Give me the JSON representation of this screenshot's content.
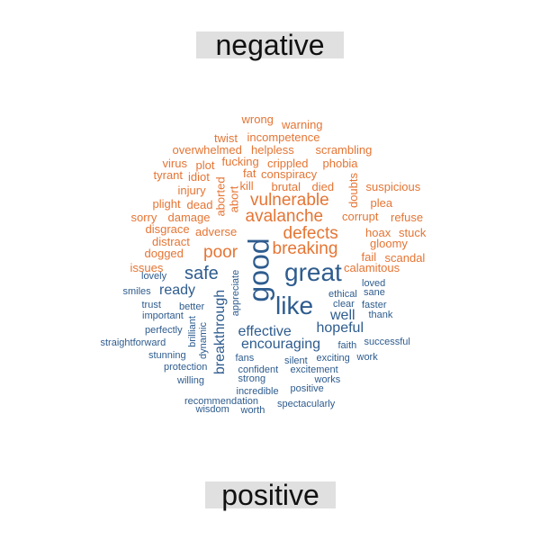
{
  "colors": {
    "negative": "#E57534",
    "positive": "#2E5C8E"
  },
  "labels": {
    "negative": "negative",
    "positive": "positive"
  },
  "words": [
    {
      "text": "wrong",
      "sentiment": "negative"
    },
    {
      "text": "warning",
      "sentiment": "negative"
    },
    {
      "text": "twist",
      "sentiment": "negative"
    },
    {
      "text": "incompetence",
      "sentiment": "negative"
    },
    {
      "text": "overwhelmed",
      "sentiment": "negative"
    },
    {
      "text": "helpless",
      "sentiment": "negative"
    },
    {
      "text": "scrambling",
      "sentiment": "negative"
    },
    {
      "text": "virus",
      "sentiment": "negative"
    },
    {
      "text": "plot",
      "sentiment": "negative"
    },
    {
      "text": "fucking",
      "sentiment": "negative"
    },
    {
      "text": "crippled",
      "sentiment": "negative"
    },
    {
      "text": "phobia",
      "sentiment": "negative"
    },
    {
      "text": "tyrant",
      "sentiment": "negative"
    },
    {
      "text": "idiot",
      "sentiment": "negative"
    },
    {
      "text": "fat",
      "sentiment": "negative"
    },
    {
      "text": "conspiracy",
      "sentiment": "negative"
    },
    {
      "text": "kill",
      "sentiment": "negative"
    },
    {
      "text": "brutal",
      "sentiment": "negative"
    },
    {
      "text": "died",
      "sentiment": "negative"
    },
    {
      "text": "suspicious",
      "sentiment": "negative"
    },
    {
      "text": "injury",
      "sentiment": "negative"
    },
    {
      "text": "aborted",
      "sentiment": "negative"
    },
    {
      "text": "abort",
      "sentiment": "negative"
    },
    {
      "text": "doubts",
      "sentiment": "negative"
    },
    {
      "text": "plight",
      "sentiment": "negative"
    },
    {
      "text": "dead",
      "sentiment": "negative"
    },
    {
      "text": "vulnerable",
      "sentiment": "negative"
    },
    {
      "text": "plea",
      "sentiment": "negative"
    },
    {
      "text": "sorry",
      "sentiment": "negative"
    },
    {
      "text": "damage",
      "sentiment": "negative"
    },
    {
      "text": "avalanche",
      "sentiment": "negative"
    },
    {
      "text": "corrupt",
      "sentiment": "negative"
    },
    {
      "text": "refuse",
      "sentiment": "negative"
    },
    {
      "text": "disgrace",
      "sentiment": "negative"
    },
    {
      "text": "adverse",
      "sentiment": "negative"
    },
    {
      "text": "defects",
      "sentiment": "negative"
    },
    {
      "text": "hoax",
      "sentiment": "negative"
    },
    {
      "text": "stuck",
      "sentiment": "negative"
    },
    {
      "text": "distract",
      "sentiment": "negative"
    },
    {
      "text": "gloomy",
      "sentiment": "negative"
    },
    {
      "text": "dogged",
      "sentiment": "negative"
    },
    {
      "text": "poor",
      "sentiment": "negative"
    },
    {
      "text": "breaking",
      "sentiment": "negative"
    },
    {
      "text": "fail",
      "sentiment": "negative"
    },
    {
      "text": "scandal",
      "sentiment": "negative"
    },
    {
      "text": "issues",
      "sentiment": "negative"
    },
    {
      "text": "calamitous",
      "sentiment": "negative"
    },
    {
      "text": "good",
      "sentiment": "positive"
    },
    {
      "text": "great",
      "sentiment": "positive"
    },
    {
      "text": "safe",
      "sentiment": "positive"
    },
    {
      "text": "lovely",
      "sentiment": "positive"
    },
    {
      "text": "appreciate",
      "sentiment": "positive"
    },
    {
      "text": "loved",
      "sentiment": "positive"
    },
    {
      "text": "smiles",
      "sentiment": "positive"
    },
    {
      "text": "ready",
      "sentiment": "positive"
    },
    {
      "text": "ethical",
      "sentiment": "positive"
    },
    {
      "text": "sane",
      "sentiment": "positive"
    },
    {
      "text": "like",
      "sentiment": "positive"
    },
    {
      "text": "trust",
      "sentiment": "positive"
    },
    {
      "text": "better",
      "sentiment": "positive"
    },
    {
      "text": "clear",
      "sentiment": "positive"
    },
    {
      "text": "faster",
      "sentiment": "positive"
    },
    {
      "text": "important",
      "sentiment": "positive"
    },
    {
      "text": "breakthrough",
      "sentiment": "positive"
    },
    {
      "text": "well",
      "sentiment": "positive"
    },
    {
      "text": "thank",
      "sentiment": "positive"
    },
    {
      "text": "brilliant",
      "sentiment": "positive"
    },
    {
      "text": "hopeful",
      "sentiment": "positive"
    },
    {
      "text": "perfectly",
      "sentiment": "positive"
    },
    {
      "text": "effective",
      "sentiment": "positive"
    },
    {
      "text": "dynamic",
      "sentiment": "positive"
    },
    {
      "text": "straightforward",
      "sentiment": "positive"
    },
    {
      "text": "encouraging",
      "sentiment": "positive"
    },
    {
      "text": "faith",
      "sentiment": "positive"
    },
    {
      "text": "successful",
      "sentiment": "positive"
    },
    {
      "text": "stunning",
      "sentiment": "positive"
    },
    {
      "text": "fans",
      "sentiment": "positive"
    },
    {
      "text": "silent",
      "sentiment": "positive"
    },
    {
      "text": "exciting",
      "sentiment": "positive"
    },
    {
      "text": "work",
      "sentiment": "positive"
    },
    {
      "text": "protection",
      "sentiment": "positive"
    },
    {
      "text": "confident",
      "sentiment": "positive"
    },
    {
      "text": "excitement",
      "sentiment": "positive"
    },
    {
      "text": "willing",
      "sentiment": "positive"
    },
    {
      "text": "strong",
      "sentiment": "positive"
    },
    {
      "text": "works",
      "sentiment": "positive"
    },
    {
      "text": "incredible",
      "sentiment": "positive"
    },
    {
      "text": "positive",
      "sentiment": "positive"
    },
    {
      "text": "recommendation",
      "sentiment": "positive"
    },
    {
      "text": "spectacularly",
      "sentiment": "positive"
    },
    {
      "text": "wisdom",
      "sentiment": "positive"
    },
    {
      "text": "worth",
      "sentiment": "positive"
    }
  ]
}
